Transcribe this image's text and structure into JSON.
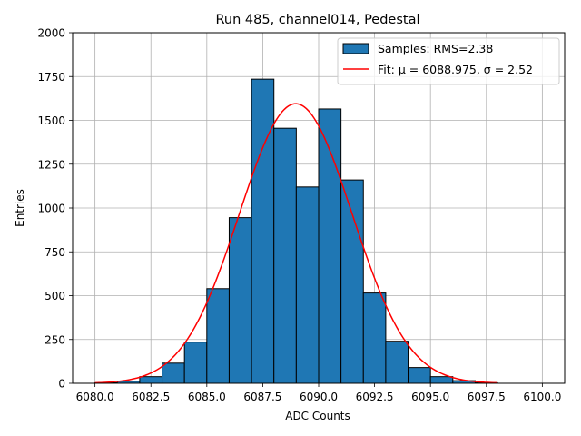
{
  "chart_data": {
    "type": "bar",
    "title": "Run 485, channel014, Pedestal",
    "xlabel": "ADC Counts",
    "ylabel": "Entries",
    "xlim": [
      6079,
      6101
    ],
    "ylim": [
      0,
      2000
    ],
    "xticks": [
      6080.0,
      6082.5,
      6085.0,
      6087.5,
      6090.0,
      6092.5,
      6095.0,
      6097.5,
      6100.0
    ],
    "xtick_labels": [
      "6080.0",
      "6082.5",
      "6085.0",
      "6087.5",
      "6090.0",
      "6092.5",
      "6095.0",
      "6097.5",
      "6100.0"
    ],
    "yticks": [
      0,
      250,
      500,
      750,
      1000,
      1250,
      1500,
      1750,
      2000
    ],
    "ytick_labels": [
      "0",
      "250",
      "500",
      "750",
      "1000",
      "1250",
      "1500",
      "1750",
      "2000"
    ],
    "grid": true,
    "legend_position": "top-right",
    "colors": {
      "bars": "#1f77b4",
      "bar_edge": "#000000",
      "fit": "#ff0000",
      "grid": "#b0b0b0"
    },
    "histogram": {
      "name": "Samples: RMS=2.38",
      "bin_edges": [
        6080,
        6081,
        6082,
        6083,
        6084,
        6085,
        6086,
        6087,
        6088,
        6089,
        6090,
        6091,
        6092,
        6093,
        6094,
        6095,
        6096,
        6097,
        6098
      ],
      "counts": [
        3,
        12,
        38,
        115,
        235,
        540,
        945,
        1735,
        1455,
        1120,
        1565,
        1160,
        515,
        240,
        90,
        38,
        15,
        3
      ]
    },
    "fit": {
      "name": "Fit: μ = 6088.975, σ = 2.52",
      "mu": 6088.975,
      "sigma": 2.52,
      "amplitude": 1595,
      "x_range": [
        6080,
        6098
      ]
    }
  }
}
